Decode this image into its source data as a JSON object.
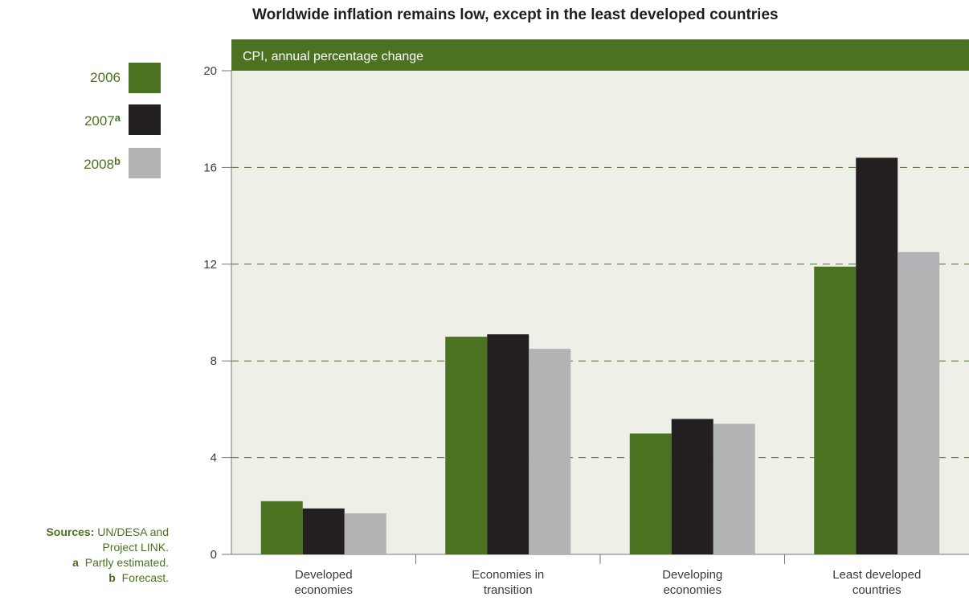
{
  "chart_data": {
    "type": "bar",
    "title": "Worldwide inflation remains low, except in the least developed countries",
    "ylabel": "CPI, annual percentage change",
    "categories": [
      [
        "Developed",
        "economies"
      ],
      [
        "Economies in",
        "transition"
      ],
      [
        "Developing",
        "economies"
      ],
      [
        "Least developed",
        "countries"
      ]
    ],
    "series": [
      {
        "name": "2006",
        "sup": "",
        "color": "#4a7220",
        "values": [
          2.2,
          9.0,
          5.0,
          11.9
        ]
      },
      {
        "name": "2007",
        "sup": "a",
        "color": "#231f20",
        "values": [
          1.9,
          9.1,
          5.6,
          16.4
        ]
      },
      {
        "name": "2008",
        "sup": "b",
        "color": "#b2b3b5",
        "values": [
          1.7,
          8.5,
          5.4,
          12.5
        ]
      }
    ],
    "ylim": [
      0,
      20
    ],
    "yticks": [
      0,
      4,
      8,
      12,
      16,
      20
    ],
    "grid": true,
    "legend_position": "top-left"
  },
  "notes": {
    "sources_label": "Sources:",
    "sources_text": "UN/DESA and",
    "sources_text2": "Project LINK.",
    "note_a_mark": "a",
    "note_a_text": "Partly estimated.",
    "note_b_mark": "b",
    "note_b_text": "Forecast."
  },
  "colors": {
    "plot_background": "#eef0e8",
    "header_band": "#4a7220",
    "grid": "#4a7220"
  }
}
